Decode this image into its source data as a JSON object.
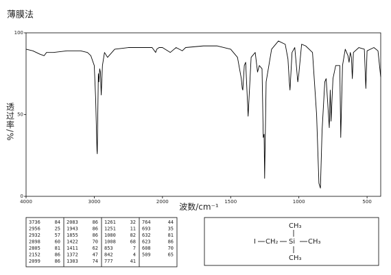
{
  "chart_data": {
    "type": "line",
    "title": "薄膜法",
    "y_label": "透过率/%",
    "x_label": "波数/cm⁻¹",
    "color": "#000000",
    "x": [
      4000,
      3900,
      3800,
      3736,
      3700,
      3600,
      3400,
      3200,
      3100,
      3050,
      3000,
      2980,
      2960,
      2956,
      2950,
      2940,
      2932,
      2920,
      2910,
      2898,
      2880,
      2850,
      2805,
      2700,
      2500,
      2300,
      2152,
      2100,
      2083,
      2050,
      2000,
      1943,
      1900,
      1855,
      1830,
      1700,
      1600,
      1500,
      1450,
      1422,
      1415,
      1411,
      1400,
      1390,
      1372,
      1350,
      1320,
      1303,
      1290,
      1270,
      1261,
      1255,
      1251,
      1240,
      1200,
      1150,
      1100,
      1080,
      1070,
      1065,
      1050,
      1030,
      1008,
      1000,
      980,
      950,
      900,
      870,
      853,
      842,
      830,
      810,
      800,
      777,
      770,
      764,
      750,
      730,
      700,
      693,
      680,
      660,
      640,
      632,
      623,
      615,
      608,
      600,
      560,
      520,
      509,
      500,
      450,
      420,
      400
    ],
    "values": [
      90,
      89,
      87,
      86,
      88,
      88,
      89,
      89,
      88,
      86,
      80,
      60,
      28,
      26,
      45,
      75,
      70,
      78,
      76,
      62,
      80,
      88,
      85,
      90,
      91,
      91,
      91,
      88,
      90,
      91,
      91,
      88,
      91,
      89,
      91,
      92,
      92,
      90,
      85,
      72,
      66,
      65,
      80,
      82,
      49,
      85,
      88,
      76,
      80,
      78,
      36,
      38,
      11,
      70,
      90,
      95,
      93,
      84,
      70,
      65,
      88,
      91,
      70,
      75,
      93,
      92,
      88,
      50,
      8,
      5,
      40,
      70,
      72,
      42,
      65,
      46,
      72,
      80,
      80,
      36,
      80,
      90,
      86,
      82,
      88,
      85,
      72,
      88,
      91,
      90,
      66,
      89,
      91,
      89,
      73
    ],
    "xlim": [
      4000,
      400
    ],
    "xticks": [
      4000,
      3000,
      2000,
      1500,
      1000,
      500
    ],
    "ylim": [
      0,
      100
    ],
    "yticks": [
      0,
      50,
      100
    ]
  },
  "peak_table": {
    "columns": [
      [
        [
          3736,
          84
        ],
        [
          2956,
          25
        ],
        [
          2932,
          57
        ],
        [
          2898,
          60
        ],
        [
          2805,
          81
        ],
        [
          2152,
          86
        ],
        [
          2099,
          86
        ]
      ],
      [
        [
          2083,
          86
        ],
        [
          1943,
          86
        ],
        [
          1855,
          86
        ],
        [
          1422,
          70
        ],
        [
          1411,
          62
        ],
        [
          1372,
          47
        ],
        [
          1303,
          74
        ]
      ],
      [
        [
          1261,
          32
        ],
        [
          1251,
          11
        ],
        [
          1080,
          82
        ],
        [
          1008,
          68
        ],
        [
          853,
          7
        ],
        [
          842,
          4
        ],
        [
          777,
          41
        ]
      ],
      [
        [
          764,
          44
        ],
        [
          693,
          35
        ],
        [
          632,
          81
        ],
        [
          623,
          86
        ],
        [
          608,
          70
        ],
        [
          509,
          65
        ]
      ]
    ]
  },
  "structure": {
    "iodine": "I",
    "methylene": "CH₂",
    "silicon": "Si",
    "methyl_top": "CH₃",
    "methyl_right": "CH₃",
    "methyl_bottom": "CH₃"
  }
}
